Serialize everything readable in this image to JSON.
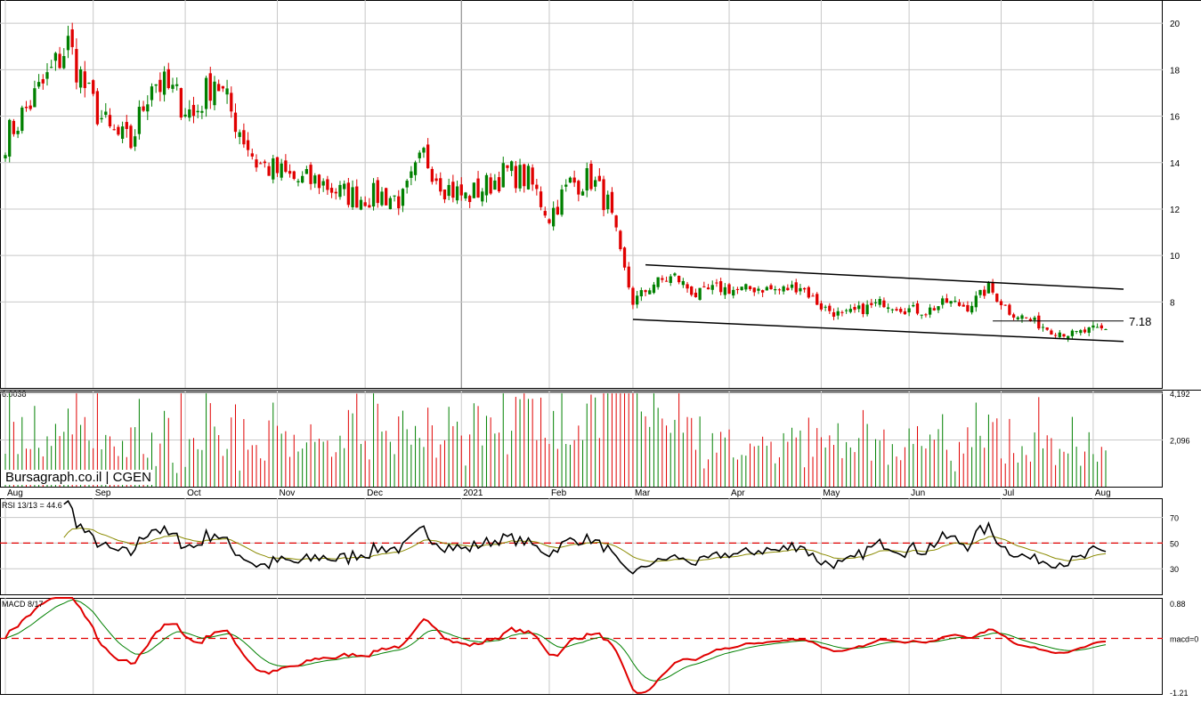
{
  "site": "Bursagraph.co.il",
  "symbol": "CGEN",
  "watermark": "Bursagraph.co.il | CGEN",
  "colors": {
    "up": "#008000",
    "down": "#e00000",
    "grid": "#c8c8c8",
    "ref_line": "#e00000",
    "rsi_line": "#000000",
    "rsi_signal": "#8a8a00",
    "macd_line": "#e00000",
    "macd_signal": "#008000"
  },
  "chart_data": [
    {
      "type": "candlestick",
      "name": "price",
      "ylim": [
        4.3,
        21.0
      ],
      "y_ticks": [
        "20",
        "18",
        "16",
        "14",
        "12",
        "10",
        "8"
      ],
      "x_months": [
        "Aug",
        "Sep",
        "Oct",
        "Nov",
        "Dec",
        "2021",
        "Feb",
        "Mar",
        "Apr",
        "May",
        "Jun",
        "Jul",
        "Aug"
      ],
      "x_range": [
        "2020-08-03",
        "2021-08-05"
      ],
      "annotation": "7.18",
      "annotation_value": 7.18,
      "channel_lines": [
        {
          "from": [
            "2021-03-04",
            9.6
          ],
          "to": [
            "2021-08-05",
            8.55
          ]
        },
        {
          "from": [
            "2021-03-01",
            7.25
          ],
          "to": [
            "2021-08-05",
            6.3
          ]
        }
      ],
      "anchors": [
        [
          "2020-08-03",
          15.0
        ],
        [
          "2020-08-10",
          16.3
        ],
        [
          "2020-08-17",
          17.6
        ],
        [
          "2020-08-24",
          19.1
        ],
        [
          "2020-08-31",
          16.8
        ],
        [
          "2020-09-07",
          15.3
        ],
        [
          "2020-09-14",
          14.8
        ],
        [
          "2020-09-21",
          17.6
        ],
        [
          "2020-09-28",
          17.0
        ],
        [
          "2020-10-05",
          16.0
        ],
        [
          "2020-10-12",
          17.7
        ],
        [
          "2020-10-19",
          15.8
        ],
        [
          "2020-10-26",
          14.0
        ],
        [
          "2020-11-02",
          13.6
        ],
        [
          "2020-11-09",
          13.2
        ],
        [
          "2020-11-16",
          13.2
        ],
        [
          "2020-11-23",
          12.7
        ],
        [
          "2020-11-30",
          12.5
        ],
        [
          "2020-12-07",
          12.6
        ],
        [
          "2020-12-14",
          12.4
        ],
        [
          "2020-12-21",
          14.3
        ],
        [
          "2020-12-28",
          13.0
        ],
        [
          "2021-01-04",
          12.5
        ],
        [
          "2021-01-11",
          13.0
        ],
        [
          "2021-01-18",
          13.6
        ],
        [
          "2021-01-25",
          13.3
        ],
        [
          "2021-02-01",
          11.7
        ],
        [
          "2021-02-08",
          13.1
        ],
        [
          "2021-02-15",
          13.3
        ],
        [
          "2021-02-19",
          12.2
        ],
        [
          "2021-02-24",
          10.0
        ],
        [
          "2021-03-01",
          8.0
        ],
        [
          "2021-03-08",
          8.8
        ],
        [
          "2021-03-15",
          9.1
        ],
        [
          "2021-03-22",
          8.3
        ],
        [
          "2021-03-29",
          8.6
        ],
        [
          "2021-04-05",
          8.5
        ],
        [
          "2021-04-12",
          8.6
        ],
        [
          "2021-04-19",
          8.5
        ],
        [
          "2021-04-26",
          8.7
        ],
        [
          "2021-05-03",
          7.8
        ],
        [
          "2021-05-10",
          7.4
        ],
        [
          "2021-05-17",
          7.7
        ],
        [
          "2021-05-24",
          8.0
        ],
        [
          "2021-05-31",
          7.7
        ],
        [
          "2021-06-07",
          7.6
        ],
        [
          "2021-06-14",
          8.0
        ],
        [
          "2021-06-21",
          7.8
        ],
        [
          "2021-06-28",
          8.6
        ],
        [
          "2021-07-05",
          7.6
        ],
        [
          "2021-07-12",
          7.2
        ],
        [
          "2021-07-19",
          6.8
        ],
        [
          "2021-07-26",
          6.6
        ],
        [
          "2021-08-02",
          6.8
        ]
      ]
    },
    {
      "type": "bar",
      "name": "volume",
      "header_label": "6.0038",
      "y_ticks": [
        "4,192",
        "2,096"
      ],
      "ylim": [
        0,
        4192
      ]
    },
    {
      "type": "line",
      "name": "RSI 13/13",
      "label": "RSI 13/13 = 44.6",
      "value": 44.6,
      "ylim": [
        10,
        85
      ],
      "y_ticks": [
        "70",
        "50",
        "30"
      ],
      "reference_line": 50
    },
    {
      "type": "line",
      "name": "MACD 8/17",
      "label": "MACD 8/17",
      "ylim": [
        -1.21,
        0.88
      ],
      "y_ticks": [
        "0.88",
        "macd=0",
        "-1.21"
      ],
      "reference_line": 0
    }
  ]
}
